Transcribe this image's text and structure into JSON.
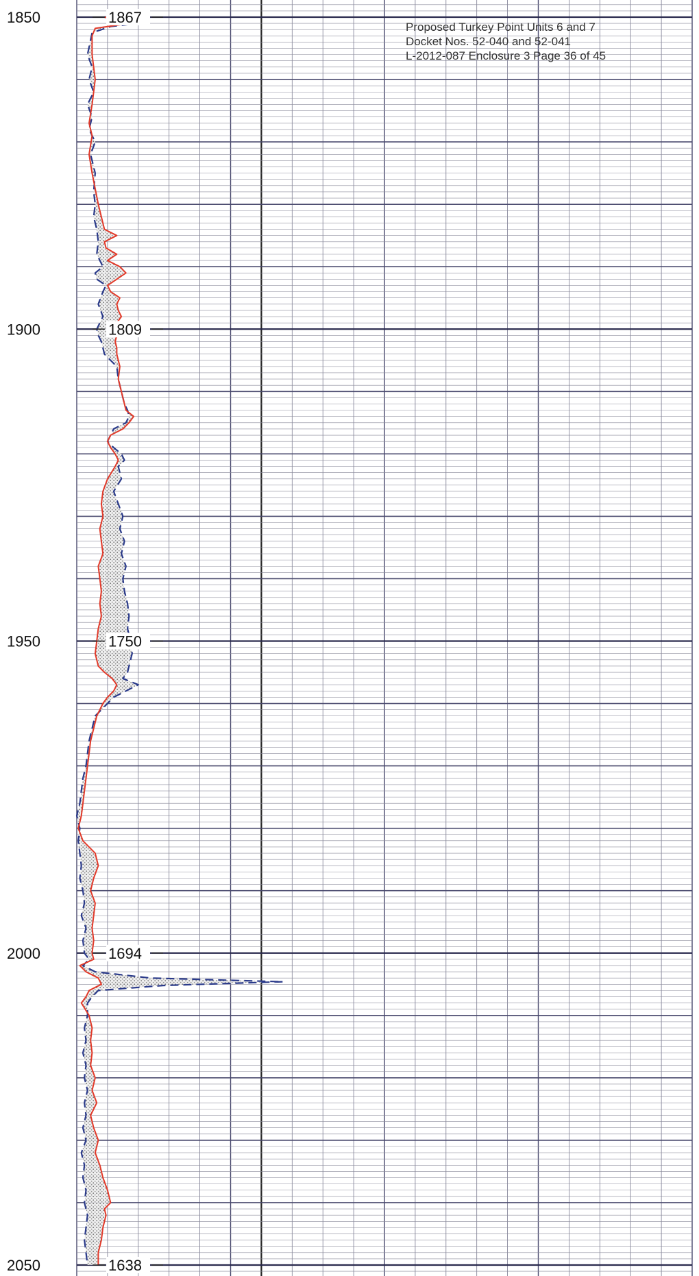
{
  "header": {
    "line1": "Proposed Turkey Point Units 6 and 7",
    "line2": "Docket Nos. 52-040 and 52-041",
    "line3": "L-2012-087 Enclosure 3 Page 36 of 45"
  },
  "chart_data": {
    "type": "line",
    "depth_range": [
      1850,
      2050
    ],
    "depth_ticks": [
      {
        "depth": 1850,
        "label": "1850",
        "elevation": "1867"
      },
      {
        "depth": 1900,
        "label": "1900",
        "elevation": "1809"
      },
      {
        "depth": 1950,
        "label": "1950",
        "elevation": "1750"
      },
      {
        "depth": 2000,
        "label": "2000",
        "elevation": "1694"
      },
      {
        "depth": 2050,
        "label": "2050",
        "elevation": "1638"
      }
    ],
    "x_divisions": 20,
    "series": [
      {
        "key": "red",
        "color": "#e23a2a",
        "style": "solid",
        "points": [
          [
            1850.0,
            0.9
          ],
          [
            1850.4,
            1.4
          ],
          [
            1850.8,
            2.1
          ],
          [
            1851.3,
            1.3
          ],
          [
            1851.8,
            0.6
          ],
          [
            1853,
            0.5
          ],
          [
            1856,
            0.5
          ],
          [
            1860,
            0.6
          ],
          [
            1864,
            0.5
          ],
          [
            1867,
            0.4
          ],
          [
            1869,
            0.5
          ],
          [
            1872,
            0.4
          ],
          [
            1875,
            0.5
          ],
          [
            1880,
            0.7
          ],
          [
            1882,
            0.8
          ],
          [
            1884,
            0.9
          ],
          [
            1885,
            1.3
          ],
          [
            1886,
            0.9
          ],
          [
            1887,
            0.95
          ],
          [
            1888,
            1.3
          ],
          [
            1889,
            1.0
          ],
          [
            1890,
            1.4
          ],
          [
            1891,
            1.6
          ],
          [
            1892,
            1.3
          ],
          [
            1893,
            1.0
          ],
          [
            1894,
            1.1
          ],
          [
            1895,
            1.4
          ],
          [
            1896,
            1.3
          ],
          [
            1897,
            1.35
          ],
          [
            1898,
            1.45
          ],
          [
            1899,
            1.3
          ],
          [
            1900,
            1.5
          ],
          [
            1901,
            1.3
          ],
          [
            1902,
            1.25
          ],
          [
            1903,
            1.3
          ],
          [
            1904,
            1.3
          ],
          [
            1906,
            1.4
          ],
          [
            1908,
            1.35
          ],
          [
            1910,
            1.45
          ],
          [
            1912,
            1.55
          ],
          [
            1913,
            1.6
          ],
          [
            1914,
            1.85
          ],
          [
            1915,
            1.7
          ],
          [
            1916,
            1.5
          ],
          [
            1917,
            1.1
          ],
          [
            1918,
            1.0
          ],
          [
            1919,
            1.1
          ],
          [
            1920,
            1.25
          ],
          [
            1921,
            1.35
          ],
          [
            1922,
            1.25
          ],
          [
            1924,
            1.0
          ],
          [
            1926,
            0.85
          ],
          [
            1928,
            0.8
          ],
          [
            1930,
            0.85
          ],
          [
            1932,
            0.75
          ],
          [
            1934,
            0.8
          ],
          [
            1936,
            0.85
          ],
          [
            1938,
            0.7
          ],
          [
            1940,
            0.75
          ],
          [
            1942,
            0.8
          ],
          [
            1944,
            0.75
          ],
          [
            1946,
            0.8
          ],
          [
            1948,
            0.7
          ],
          [
            1950,
            0.65
          ],
          [
            1952,
            0.6
          ],
          [
            1954,
            0.7
          ],
          [
            1955,
            0.9
          ],
          [
            1956,
            1.15
          ],
          [
            1957,
            1.3
          ],
          [
            1958,
            1.2
          ],
          [
            1959,
            1.0
          ],
          [
            1960,
            0.85
          ],
          [
            1962,
            0.65
          ],
          [
            1964,
            0.55
          ],
          [
            1966,
            0.45
          ],
          [
            1968,
            0.4
          ],
          [
            1970,
            0.35
          ],
          [
            1972,
            0.3
          ],
          [
            1974,
            0.25
          ],
          [
            1976,
            0.2
          ],
          [
            1978,
            0.15
          ],
          [
            1980,
            0.05
          ],
          [
            1982,
            0.2
          ],
          [
            1984,
            0.6
          ],
          [
            1986,
            0.7
          ],
          [
            1988,
            0.55
          ],
          [
            1990,
            0.45
          ],
          [
            1992,
            0.6
          ],
          [
            1994,
            0.55
          ],
          [
            1996,
            0.5
          ],
          [
            1998,
            0.55
          ],
          [
            2000,
            0.5
          ],
          [
            2001,
            0.55
          ],
          [
            2002,
            0.1
          ],
          [
            2003,
            0.3
          ],
          [
            2004,
            0.7
          ],
          [
            2005,
            0.8
          ],
          [
            2006,
            0.4
          ],
          [
            2007,
            0.3
          ],
          [
            2008,
            0.15
          ],
          [
            2010,
            0.4
          ],
          [
            2012,
            0.5
          ],
          [
            2014,
            0.45
          ],
          [
            2016,
            0.5
          ],
          [
            2018,
            0.45
          ],
          [
            2020,
            0.6
          ],
          [
            2022,
            0.5
          ],
          [
            2024,
            0.65
          ],
          [
            2026,
            0.45
          ],
          [
            2028,
            0.55
          ],
          [
            2030,
            0.7
          ],
          [
            2032,
            0.6
          ],
          [
            2034,
            0.75
          ],
          [
            2036,
            0.85
          ],
          [
            2038,
            1.0
          ],
          [
            2040,
            1.1
          ],
          [
            2041,
            0.9
          ],
          [
            2042,
            0.95
          ],
          [
            2044,
            0.85
          ],
          [
            2046,
            0.8
          ],
          [
            2048,
            0.7
          ],
          [
            2050,
            0.7
          ]
        ]
      },
      {
        "key": "blue",
        "color": "#2a3a8a",
        "style": "dashed",
        "points": [
          [
            1849.6,
            1.8
          ],
          [
            1850.0,
            0.9
          ],
          [
            1850.4,
            2.1
          ],
          [
            1851.0,
            2.0
          ],
          [
            1851.5,
            1.1
          ],
          [
            1852.5,
            0.5
          ],
          [
            1856,
            0.35
          ],
          [
            1858,
            0.5
          ],
          [
            1860,
            0.4
          ],
          [
            1862,
            0.55
          ],
          [
            1864,
            0.35
          ],
          [
            1866,
            0.5
          ],
          [
            1868,
            0.4
          ],
          [
            1870,
            0.6
          ],
          [
            1872,
            0.45
          ],
          [
            1875,
            0.6
          ],
          [
            1878,
            0.55
          ],
          [
            1880,
            0.6
          ],
          [
            1882,
            0.55
          ],
          [
            1884,
            0.65
          ],
          [
            1886,
            0.7
          ],
          [
            1888,
            0.65
          ],
          [
            1890,
            0.85
          ],
          [
            1891,
            0.6
          ],
          [
            1892,
            0.65
          ],
          [
            1893,
            0.95
          ],
          [
            1894,
            0.85
          ],
          [
            1896,
            0.7
          ],
          [
            1898,
            0.85
          ],
          [
            1900,
            0.65
          ],
          [
            1901,
            0.7
          ],
          [
            1902,
            0.8
          ],
          [
            1904,
            0.9
          ],
          [
            1906,
            1.3
          ],
          [
            1908,
            1.35
          ],
          [
            1910,
            1.45
          ],
          [
            1912,
            1.55
          ],
          [
            1913,
            1.65
          ],
          [
            1914,
            1.7
          ],
          [
            1915,
            1.6
          ],
          [
            1916,
            1.2
          ],
          [
            1918,
            1.0
          ],
          [
            1919,
            1.2
          ],
          [
            1920,
            1.45
          ],
          [
            1921,
            1.55
          ],
          [
            1922,
            1.35
          ],
          [
            1924,
            1.45
          ],
          [
            1926,
            1.2
          ],
          [
            1928,
            1.35
          ],
          [
            1930,
            1.5
          ],
          [
            1932,
            1.4
          ],
          [
            1934,
            1.55
          ],
          [
            1936,
            1.45
          ],
          [
            1938,
            1.6
          ],
          [
            1940,
            1.5
          ],
          [
            1942,
            1.55
          ],
          [
            1944,
            1.65
          ],
          [
            1946,
            1.7
          ],
          [
            1948,
            1.65
          ],
          [
            1950,
            1.75
          ],
          [
            1952,
            1.8
          ],
          [
            1954,
            1.7
          ],
          [
            1955,
            1.65
          ],
          [
            1956,
            1.5
          ],
          [
            1957,
            2.0
          ],
          [
            1958,
            1.6
          ],
          [
            1959,
            1.2
          ],
          [
            1960,
            1.0
          ],
          [
            1962,
            0.6
          ],
          [
            1964,
            0.5
          ],
          [
            1966,
            0.4
          ],
          [
            1968,
            0.35
          ],
          [
            1970,
            0.3
          ],
          [
            1972,
            0.2
          ],
          [
            1974,
            0.15
          ],
          [
            1976,
            0.1
          ],
          [
            1978,
            0.0
          ],
          [
            1980,
            0.1
          ],
          [
            1982,
            0.05
          ],
          [
            1984,
            0.1
          ],
          [
            1986,
            0.15
          ],
          [
            1988,
            0.1
          ],
          [
            1990,
            0.2
          ],
          [
            1992,
            0.25
          ],
          [
            1994,
            0.15
          ],
          [
            1996,
            0.3
          ],
          [
            1998,
            0.2
          ],
          [
            2000,
            0.25
          ],
          [
            2001,
            0.4
          ],
          [
            2002,
            0.2
          ],
          [
            2003,
            0.6
          ],
          [
            2004,
            2.4
          ],
          [
            2004.6,
            6.7
          ],
          [
            2005.2,
            2.8
          ],
          [
            2006,
            0.7
          ],
          [
            2007,
            0.5
          ],
          [
            2008,
            0.35
          ],
          [
            2010,
            0.35
          ],
          [
            2012,
            0.25
          ],
          [
            2014,
            0.3
          ],
          [
            2016,
            0.2
          ],
          [
            2018,
            0.3
          ],
          [
            2020,
            0.25
          ],
          [
            2022,
            0.35
          ],
          [
            2024,
            0.25
          ],
          [
            2026,
            0.3
          ],
          [
            2028,
            0.2
          ],
          [
            2030,
            0.3
          ],
          [
            2032,
            0.15
          ],
          [
            2034,
            0.25
          ],
          [
            2036,
            0.2
          ],
          [
            2038,
            0.3
          ],
          [
            2040,
            0.25
          ],
          [
            2042,
            0.35
          ],
          [
            2044,
            0.3
          ],
          [
            2046,
            0.25
          ],
          [
            2048,
            0.3
          ],
          [
            2050,
            0.35
          ]
        ]
      }
    ]
  }
}
